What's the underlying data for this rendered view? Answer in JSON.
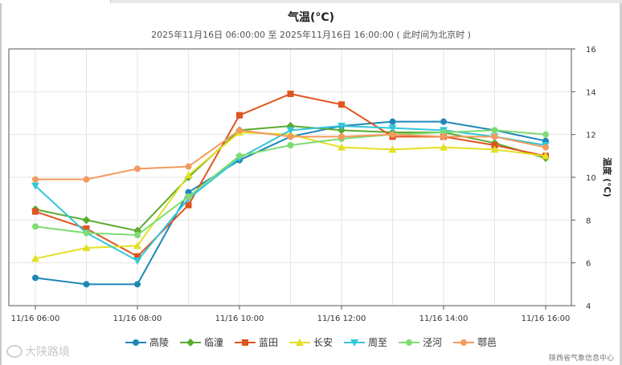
{
  "chart_data": {
    "type": "line",
    "title": "气温(°C)",
    "subtitle": "2025年11月16日 06:00:00 至 2025年11月16日 16:00:00 ( 此时间为北京时 )",
    "ylabel": "温度 (°C)",
    "ylim": [
      4,
      16
    ],
    "yticks": [
      4,
      6,
      8,
      10,
      12,
      14,
      16
    ],
    "x_hours": [
      6,
      7,
      8,
      9,
      10,
      11,
      12,
      13,
      14,
      15,
      16
    ],
    "xticks": [
      {
        "hour": 6,
        "label": "11/16 06:00"
      },
      {
        "hour": 8,
        "label": "11/16 08:00"
      },
      {
        "hour": 10,
        "label": "11/16 10:00"
      },
      {
        "hour": 12,
        "label": "11/16 12:00"
      },
      {
        "hour": 14,
        "label": "11/16 14:00"
      },
      {
        "hour": 16,
        "label": "11/16 16:00"
      }
    ],
    "grid": true,
    "legend_position": "bottom",
    "series": [
      {
        "name": "高陵",
        "color": "#1f87b8",
        "marker": "circle",
        "values": [
          5.3,
          5.0,
          5.0,
          9.3,
          10.8,
          11.9,
          12.4,
          12.6,
          12.6,
          12.2,
          11.7
        ]
      },
      {
        "name": "临潼",
        "color": "#5aab30",
        "marker": "diamond",
        "values": [
          8.5,
          8.0,
          7.5,
          10.0,
          12.2,
          12.4,
          12.2,
          12.1,
          12.1,
          11.6,
          10.9
        ]
      },
      {
        "name": "蓝田",
        "color": "#e0541f",
        "marker": "square",
        "values": [
          8.4,
          7.6,
          6.3,
          8.7,
          12.9,
          13.9,
          13.4,
          11.9,
          11.9,
          11.5,
          11.0
        ]
      },
      {
        "name": "长安",
        "color": "#e3e024",
        "marker": "triangle",
        "values": [
          6.2,
          6.7,
          6.8,
          10.1,
          12.1,
          12.0,
          11.4,
          11.3,
          11.4,
          11.3,
          11.0
        ]
      },
      {
        "name": "周至",
        "color": "#33c6d9",
        "marker": "tri-down",
        "values": [
          9.6,
          7.4,
          6.1,
          9.0,
          10.9,
          12.2,
          12.4,
          12.3,
          12.2,
          11.9,
          11.5
        ]
      },
      {
        "name": "泾河",
        "color": "#7edc72",
        "marker": "circle",
        "values": [
          7.7,
          7.4,
          7.3,
          9.1,
          11.0,
          11.5,
          11.8,
          12.0,
          12.1,
          12.2,
          12.0
        ]
      },
      {
        "name": "鄠邑",
        "color": "#f39a5e",
        "marker": "circle",
        "values": [
          9.9,
          9.9,
          10.4,
          10.5,
          12.2,
          11.9,
          11.9,
          12.0,
          11.9,
          11.9,
          11.4
        ]
      }
    ]
  },
  "credit": "陕西省气象信息中心",
  "watermark": "大陕路境"
}
